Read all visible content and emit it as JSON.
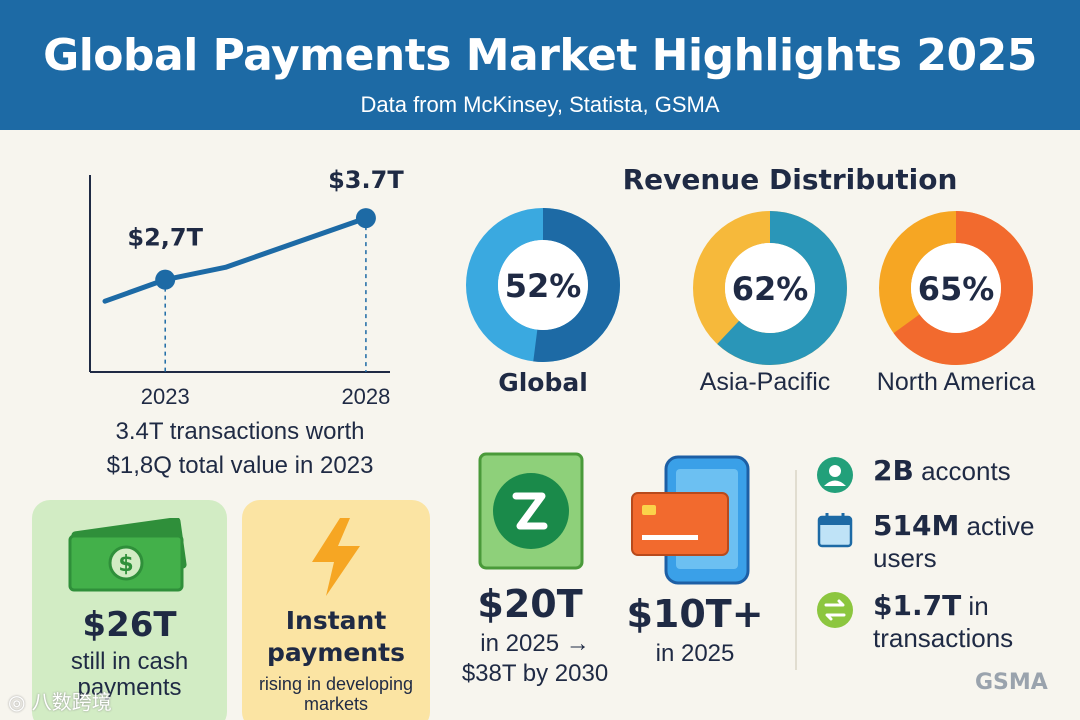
{
  "header": {
    "title": "Global Payments Market Highlights 2025",
    "subtitle": "Data from McKinsey, Statista, GSMA"
  },
  "chart_data": [
    {
      "type": "line",
      "x": [
        "2023",
        "2028"
      ],
      "points": [
        {
          "x": "2023",
          "value": 2.7,
          "label": "$2,7T"
        },
        {
          "x": "2028",
          "value": 3.7,
          "label": "$3.7T"
        }
      ],
      "series_shape": [
        {
          "x": 2021.5,
          "y": 2.35
        },
        {
          "x": 2023,
          "y": 2.7
        },
        {
          "x": 2024.5,
          "y": 2.9
        },
        {
          "x": 2028,
          "y": 3.7
        }
      ],
      "title": "",
      "xlabel": "",
      "ylabel": "",
      "ylim": [
        1.2,
        4.4
      ],
      "grid": false,
      "color": "#1d6aa5"
    },
    {
      "type": "pie",
      "title": "Revenue Distribution",
      "slices": [
        {
          "name": "Global",
          "value": 52,
          "label": "52%",
          "colors": [
            "#1d6aa5",
            "#3aa9e0"
          ]
        },
        {
          "name": "Asia-Pacific",
          "value": 62,
          "label": "62%",
          "colors": [
            "#2a96b8",
            "#f6b93b"
          ]
        },
        {
          "name": "North America",
          "value": 65,
          "label": "65%",
          "colors": [
            "#f26a2e",
            "#f6a623"
          ]
        }
      ]
    }
  ],
  "line_caption": {
    "line1": "3.4T transactions worth",
    "line2": "$1,8Q total value in 2023"
  },
  "cash_card": {
    "value": "$26T",
    "line1": "still in cash",
    "line2": "payments",
    "icon": "cash-icon",
    "bg": "#d2ecc4"
  },
  "instant_card": {
    "line1": "Instant",
    "line2": "payments",
    "sub1": "rising in developing",
    "sub2": "markets",
    "icon": "lightning-icon",
    "bg": "#fbe4a3"
  },
  "stat_a": {
    "value": "$20T",
    "line1": "in 2025 →",
    "line2": "$38T by 2030",
    "icon": "payment-logo-icon"
  },
  "stat_b": {
    "value": "$10T+",
    "line1": "in 2025",
    "icon": "phone-card-icon"
  },
  "list": [
    {
      "bold": "2B",
      "text": "acconts",
      "icon": "user-icon"
    },
    {
      "bold": "514M",
      "text": "active",
      "text2": "users",
      "icon": "calendar-icon"
    },
    {
      "bold": "$1.7T",
      "text": "in",
      "text2": "transactions",
      "icon": "transfer-icon"
    }
  ],
  "footer": {
    "source": "GSMA",
    "watermark": "◎ 八数跨境"
  }
}
